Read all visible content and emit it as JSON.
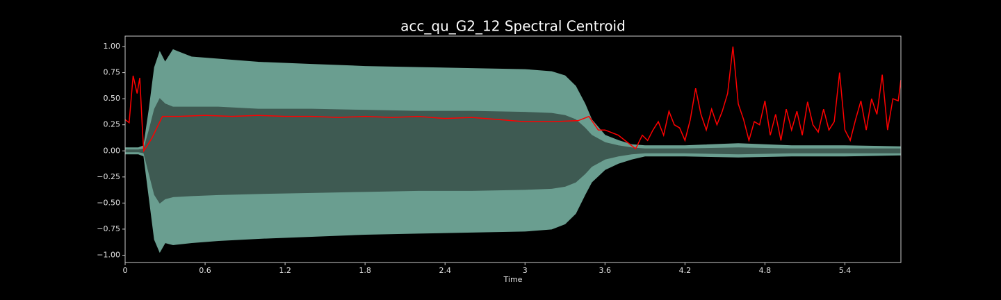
{
  "chart_data": {
    "type": "waveform",
    "title": "acc_qu_G2_12 Spectral Centroid",
    "xlabel": "Time",
    "xlim": [
      0,
      5.82
    ],
    "ylim": [
      -1.07,
      1.1
    ],
    "xticks": [
      0,
      0.6,
      1.2,
      1.8,
      2.4,
      3,
      3.6,
      4.2,
      4.8,
      5.4
    ],
    "yticks": [
      {
        "value": 1.0,
        "label": "1.00"
      },
      {
        "value": 0.75,
        "label": "0.75"
      },
      {
        "value": 0.5,
        "label": "0.50"
      },
      {
        "value": 0.25,
        "label": "0.25"
      },
      {
        "value": 0.0,
        "label": "0.00"
      },
      {
        "value": -0.25,
        "label": "−0.25"
      },
      {
        "value": -0.5,
        "label": "−0.50"
      },
      {
        "value": -0.75,
        "label": "−0.75"
      },
      {
        "value": -1.0,
        "label": "−1.00"
      }
    ],
    "series": [
      {
        "kind": "band",
        "color": "#6a9e90",
        "x": [
          0,
          0.1,
          0.14,
          0.18,
          0.22,
          0.26,
          0.3,
          0.36,
          0.5,
          0.7,
          1.0,
          1.4,
          1.8,
          2.2,
          2.6,
          3.0,
          3.2,
          3.3,
          3.38,
          3.45,
          3.5,
          3.6,
          3.7,
          3.8,
          3.9,
          4.2,
          4.6,
          5.0,
          5.4,
          5.82
        ],
        "upper": [
          0.03,
          0.03,
          0.05,
          0.4,
          0.8,
          0.95,
          0.85,
          0.97,
          0.9,
          0.88,
          0.85,
          0.83,
          0.81,
          0.8,
          0.79,
          0.78,
          0.76,
          0.72,
          0.62,
          0.45,
          0.3,
          0.15,
          0.1,
          0.06,
          0.05,
          0.05,
          0.07,
          0.05,
          0.05,
          0.04
        ],
        "lower": [
          -0.03,
          -0.03,
          -0.05,
          -0.45,
          -0.85,
          -0.97,
          -0.88,
          -0.9,
          -0.88,
          -0.86,
          -0.84,
          -0.82,
          -0.8,
          -0.79,
          -0.78,
          -0.77,
          -0.75,
          -0.7,
          -0.6,
          -0.42,
          -0.3,
          -0.18,
          -0.12,
          -0.08,
          -0.05,
          -0.05,
          -0.06,
          -0.05,
          -0.05,
          -0.04
        ]
      },
      {
        "kind": "band",
        "color": "#3e5a52",
        "x": [
          0,
          0.1,
          0.14,
          0.18,
          0.22,
          0.26,
          0.3,
          0.36,
          0.5,
          0.7,
          1.0,
          1.4,
          1.8,
          2.2,
          2.6,
          3.0,
          3.2,
          3.3,
          3.38,
          3.45,
          3.5,
          3.6,
          3.7,
          3.8,
          3.9,
          4.2,
          4.6,
          5.0,
          5.4,
          5.82
        ],
        "upper": [
          0.01,
          0.01,
          0.02,
          0.2,
          0.4,
          0.5,
          0.45,
          0.42,
          0.42,
          0.42,
          0.4,
          0.4,
          0.39,
          0.38,
          0.38,
          0.37,
          0.36,
          0.34,
          0.3,
          0.22,
          0.15,
          0.08,
          0.05,
          0.03,
          0.02,
          0.02,
          0.03,
          0.02,
          0.02,
          0.02
        ],
        "lower": [
          -0.01,
          -0.01,
          -0.02,
          -0.22,
          -0.42,
          -0.5,
          -0.46,
          -0.44,
          -0.43,
          -0.42,
          -0.41,
          -0.4,
          -0.39,
          -0.38,
          -0.38,
          -0.37,
          -0.36,
          -0.34,
          -0.3,
          -0.22,
          -0.15,
          -0.08,
          -0.05,
          -0.03,
          -0.02,
          -0.02,
          -0.03,
          -0.02,
          -0.02,
          -0.02
        ]
      },
      {
        "kind": "line",
        "color": "#ff0000",
        "x": [
          0,
          0.03,
          0.06,
          0.09,
          0.11,
          0.13,
          0.14,
          0.2,
          0.28,
          0.4,
          0.6,
          0.8,
          1.0,
          1.2,
          1.4,
          1.6,
          1.8,
          2.0,
          2.2,
          2.4,
          2.6,
          2.8,
          3.0,
          3.2,
          3.4,
          3.48,
          3.55,
          3.6,
          3.7,
          3.75,
          3.8,
          3.83,
          3.88,
          3.92,
          3.96,
          4.0,
          4.04,
          4.08,
          4.12,
          4.16,
          4.2,
          4.24,
          4.28,
          4.32,
          4.36,
          4.4,
          4.44,
          4.48,
          4.52,
          4.56,
          4.6,
          4.64,
          4.68,
          4.72,
          4.76,
          4.8,
          4.84,
          4.88,
          4.92,
          4.96,
          5.0,
          5.04,
          5.08,
          5.12,
          5.16,
          5.2,
          5.24,
          5.28,
          5.32,
          5.36,
          5.4,
          5.44,
          5.48,
          5.52,
          5.56,
          5.6,
          5.64,
          5.68,
          5.72,
          5.76,
          5.8,
          5.82
        ],
        "values": [
          0.3,
          0.27,
          0.72,
          0.55,
          0.7,
          0.2,
          0.0,
          0.12,
          0.33,
          0.33,
          0.34,
          0.33,
          0.34,
          0.33,
          0.33,
          0.32,
          0.33,
          0.32,
          0.33,
          0.31,
          0.32,
          0.3,
          0.28,
          0.28,
          0.29,
          0.33,
          0.2,
          0.2,
          0.15,
          0.1,
          0.05,
          0.02,
          0.15,
          0.1,
          0.2,
          0.28,
          0.15,
          0.38,
          0.25,
          0.22,
          0.1,
          0.3,
          0.6,
          0.35,
          0.2,
          0.4,
          0.25,
          0.38,
          0.55,
          1.0,
          0.45,
          0.3,
          0.1,
          0.28,
          0.25,
          0.48,
          0.15,
          0.35,
          0.1,
          0.4,
          0.2,
          0.38,
          0.15,
          0.47,
          0.25,
          0.18,
          0.4,
          0.2,
          0.28,
          0.75,
          0.2,
          0.1,
          0.3,
          0.48,
          0.2,
          0.5,
          0.35,
          0.73,
          0.2,
          0.5,
          0.48,
          0.68
        ]
      }
    ]
  }
}
